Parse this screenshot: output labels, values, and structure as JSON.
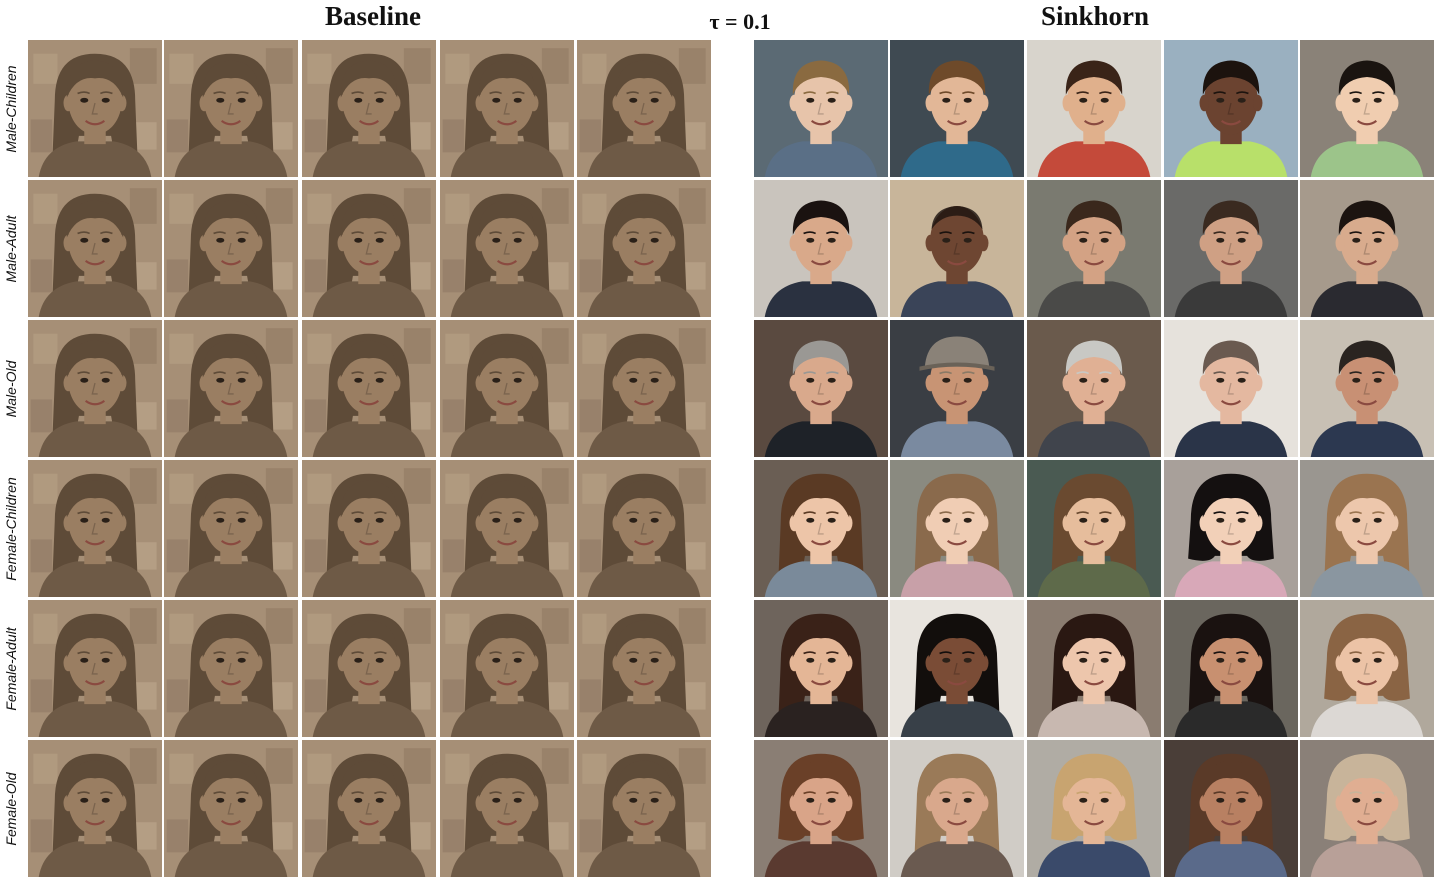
{
  "headings": {
    "baseline": "Baseline",
    "sinkhorn": "Sinkhorn",
    "tau": "τ = 0.1"
  },
  "rows": [
    {
      "label": "Male-Children"
    },
    {
      "label": "Male-Adult"
    },
    {
      "label": "Male-Old"
    },
    {
      "label": "Female-Children"
    },
    {
      "label": "Female-Adult"
    },
    {
      "label": "Female-Old"
    }
  ],
  "colors": {
    "baseline_bg": "#a68f76",
    "baseline_skin": "#9a7e62",
    "baseline_hair": "#5e4b38",
    "sinkhorn_bg": "#8d8478"
  },
  "sinkhorn_faces": [
    [
      {
        "skin": "#e7c4aa",
        "hair": "#8a6a40",
        "bg": "#5b6a74",
        "shirt": "#5a6f86",
        "style": "short"
      },
      {
        "skin": "#e2b797",
        "hair": "#6e4a2a",
        "bg": "#3f4a52",
        "shirt": "#2f6a8a",
        "style": "short"
      },
      {
        "skin": "#e0b08c",
        "hair": "#3a2418",
        "bg": "#d8d4cc",
        "shirt": "#c44a3a",
        "style": "short"
      },
      {
        "skin": "#6b4330",
        "hair": "#1c130e",
        "bg": "#9ab0c0",
        "shirt": "#b8e06a",
        "style": "short"
      },
      {
        "skin": "#f0cdb0",
        "hair": "#1a1410",
        "bg": "#8a8278",
        "shirt": "#9cc48a",
        "style": "short"
      }
    ],
    [
      {
        "skin": "#d9a98a",
        "hair": "#1a1210",
        "bg": "#c9c4bd",
        "shirt": "#2a3140",
        "style": "short"
      },
      {
        "skin": "#6e4632",
        "hair": "#1a120e",
        "bg": "#c8b59a",
        "shirt": "#3a4458",
        "style": "bald"
      },
      {
        "skin": "#d3a284",
        "hair": "#3a281c",
        "bg": "#7a7a70",
        "shirt": "#4a4a48",
        "style": "short"
      },
      {
        "skin": "#cfa084",
        "hair": "#3a2a20",
        "bg": "#6a6a68",
        "shirt": "#3a3a3a",
        "style": "short"
      },
      {
        "skin": "#d8ab8d",
        "hair": "#1c1410",
        "bg": "#a69a8c",
        "shirt": "#2a2a30",
        "style": "short"
      }
    ],
    [
      {
        "skin": "#d9a98c",
        "hair": "#9a9894",
        "bg": "#5a4a40",
        "shirt": "#1e2228",
        "style": "short"
      },
      {
        "skin": "#c89474",
        "hair": "#8a7a66",
        "bg": "#3a3e44",
        "shirt": "#7a8aa0",
        "style": "cap"
      },
      {
        "skin": "#e0b094",
        "hair": "#c8c8c4",
        "bg": "#6a5a4c",
        "shirt": "#40444c",
        "style": "short"
      },
      {
        "skin": "#e4b8a0",
        "hair": "#6a5a50",
        "bg": "#e6e2dc",
        "shirt": "#2a3448",
        "style": "short"
      },
      {
        "skin": "#c89074",
        "hair": "#2a2420",
        "bg": "#c8c0b4",
        "shirt": "#2c3850",
        "style": "short"
      }
    ],
    [
      {
        "skin": "#edc5a8",
        "hair": "#5a3a24",
        "bg": "#6a5e54",
        "shirt": "#7a8a9a",
        "style": "long"
      },
      {
        "skin": "#f0cdb4",
        "hair": "#8a6a4c",
        "bg": "#8a8a80",
        "shirt": "#c8a0a8",
        "style": "long"
      },
      {
        "skin": "#e6bd9c",
        "hair": "#6a4a30",
        "bg": "#4a5a52",
        "shirt": "#5e6a4a",
        "style": "long"
      },
      {
        "skin": "#f2d0b8",
        "hair": "#141010",
        "bg": "#a8a09a",
        "shirt": "#d8a8b8",
        "style": "bob"
      },
      {
        "skin": "#edc7ac",
        "hair": "#9a7450",
        "bg": "#9a9690",
        "shirt": "#8a96a0",
        "style": "long"
      }
    ],
    [
      {
        "skin": "#e4b696",
        "hair": "#3a2218",
        "bg": "#6e645c",
        "shirt": "#2a2220",
        "style": "long"
      },
      {
        "skin": "#7a4c36",
        "hair": "#120e0c",
        "bg": "#e8e4de",
        "shirt": "#384048",
        "style": "long"
      },
      {
        "skin": "#edc6ac",
        "hair": "#2a1812",
        "bg": "#8a7c70",
        "shirt": "#c8b8b0",
        "style": "long"
      },
      {
        "skin": "#c89070",
        "hair": "#1a1210",
        "bg": "#6a665e",
        "shirt": "#2a2a2a",
        "style": "long"
      },
      {
        "skin": "#ecc3a6",
        "hair": "#8a6444",
        "bg": "#b0a89c",
        "shirt": "#dcd8d4",
        "style": "bob"
      }
    ],
    [
      {
        "skin": "#d9a488",
        "hair": "#6a4028",
        "bg": "#8a7e74",
        "shirt": "#5a3a30",
        "style": "bob"
      },
      {
        "skin": "#d9a88c",
        "hair": "#9a7a58",
        "bg": "#d0ccc6",
        "shirt": "#6a5a50",
        "style": "long"
      },
      {
        "skin": "#e4b696",
        "hair": "#c8a470",
        "bg": "#b0aca4",
        "shirt": "#3a4a6a",
        "style": "bob"
      },
      {
        "skin": "#b88062",
        "hair": "#5a3a28",
        "bg": "#4a3e38",
        "shirt": "#5a6a8a",
        "style": "long"
      },
      {
        "skin": "#e0ae92",
        "hair": "#c8b49a",
        "bg": "#8a8078",
        "shirt": "#b8a098",
        "style": "bob"
      }
    ]
  ]
}
